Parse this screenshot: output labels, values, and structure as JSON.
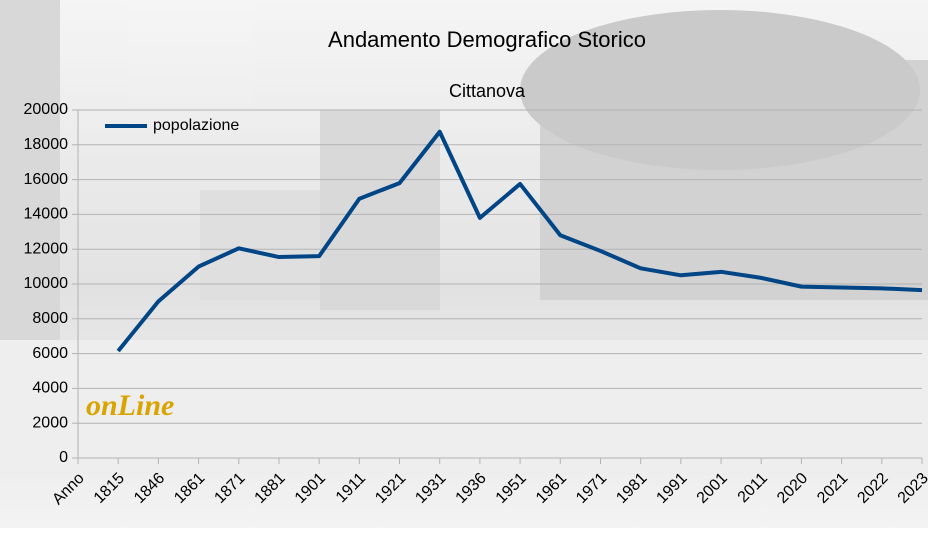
{
  "chart_data": {
    "type": "line",
    "title": "Andamento Demografico Storico",
    "subtitle": "Cittanova",
    "logo": "onLine",
    "categories": [
      "Anno",
      "1815",
      "1846",
      "1861",
      "1871",
      "1881",
      "1901",
      "1911",
      "1921",
      "1931",
      "1936",
      "1951",
      "1961",
      "1971",
      "1981",
      "1991",
      "2001",
      "2011",
      "2020",
      "2021",
      "2022",
      "2023"
    ],
    "series": [
      {
        "name": "popolazione",
        "color": "#004586",
        "values": [
          null,
          6150,
          9000,
          11000,
          12050,
          11550,
          11600,
          14900,
          15800,
          18750,
          13800,
          15750,
          12800,
          11900,
          10900,
          10500,
          10700,
          10350,
          9850,
          9800,
          9750,
          9650
        ]
      }
    ],
    "ylim": [
      0,
      20000
    ],
    "yticks": [
      0,
      2000,
      4000,
      6000,
      8000,
      10000,
      12000,
      14000,
      16000,
      18000,
      20000
    ],
    "grid": true,
    "legend": "top-left"
  }
}
